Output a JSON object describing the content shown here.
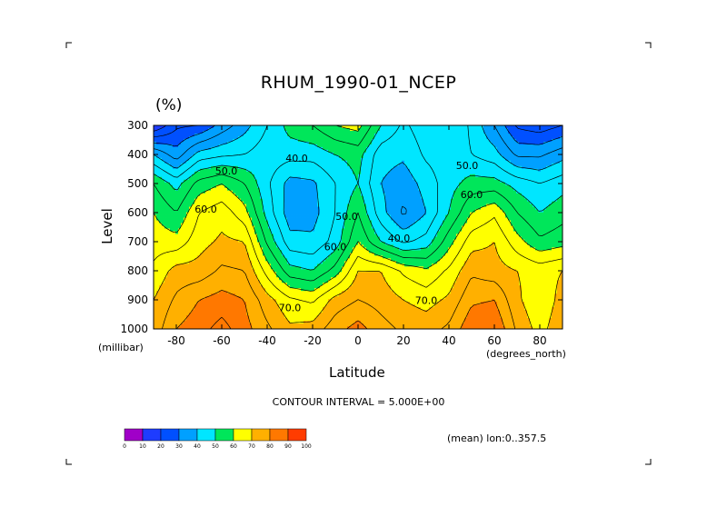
{
  "chart_data": {
    "type": "heatmap",
    "title": "RHUM_1990-01_NCEP",
    "units": "(%)",
    "ylabel": "Level",
    "ylabel_units": "(millibar)",
    "xlabel": "Latitude",
    "xlabel_units": "(degrees_north)",
    "xlim": [
      -90,
      90
    ],
    "ylim": [
      1000,
      300
    ],
    "x_ticks": [
      -80,
      -60,
      -40,
      -20,
      0,
      20,
      40,
      60,
      80
    ],
    "y_ticks": [
      300,
      400,
      500,
      600,
      700,
      800,
      900,
      1000
    ],
    "x": [
      -90,
      -80,
      -70,
      -60,
      -50,
      -40,
      -30,
      -20,
      -10,
      0,
      10,
      20,
      30,
      40,
      50,
      60,
      70,
      80,
      90
    ],
    "y": [
      1000,
      900,
      800,
      700,
      600,
      500,
      400,
      300
    ],
    "z": [
      [
        72,
        80,
        83,
        87,
        82,
        76,
        71,
        72,
        78,
        82,
        77,
        74,
        73,
        76,
        84,
        85,
        74,
        68,
        74
      ],
      [
        70,
        76,
        80,
        82,
        80,
        72,
        66,
        64,
        72,
        75,
        73,
        70,
        68,
        71,
        79,
        80,
        71,
        66,
        72
      ],
      [
        66,
        72,
        72,
        76,
        75,
        63,
        52,
        50,
        57,
        70,
        70,
        64,
        61,
        66,
        74,
        72,
        70,
        68,
        70
      ],
      [
        63,
        62,
        68,
        71,
        70,
        54,
        42,
        41,
        47,
        60,
        50,
        44,
        47,
        58,
        68,
        70,
        62,
        56,
        58
      ],
      [
        60,
        55,
        65,
        68,
        62,
        48,
        37,
        38,
        45,
        55,
        42,
        34,
        40,
        50,
        60,
        64,
        55,
        50,
        53
      ],
      [
        55,
        48,
        57,
        60,
        55,
        46,
        38,
        39,
        45,
        50,
        40,
        37,
        42,
        48,
        52,
        52,
        48,
        45,
        48
      ],
      [
        40,
        32,
        42,
        44,
        45,
        48,
        47,
        47,
        50,
        52,
        42,
        41,
        46,
        48,
        45,
        42,
        34,
        34,
        38
      ],
      [
        15,
        24,
        25,
        32,
        38,
        45,
        52,
        55,
        60,
        62,
        50,
        44,
        48,
        50,
        44,
        35,
        24,
        22,
        25
      ]
    ],
    "contour_interval": "CONTOUR INTERVAL = 5.000E+00",
    "contour_labels": [
      "50.0",
      "40.0",
      "60.0",
      "50.0",
      "40.0",
      "60.0",
      "70.0",
      "70.0",
      "50.0",
      "60.0"
    ],
    "colorbar": {
      "ticks": [
        "0",
        "10",
        "20",
        "30",
        "40",
        "50",
        "60",
        "70",
        "80",
        "90",
        "100"
      ],
      "colors": [
        "#a000c8",
        "#1e3cff",
        "#0050ff",
        "#00a0ff",
        "#00e6ff",
        "#00e65a",
        "#ffff00",
        "#ffb000",
        "#ff7800",
        "#ff3c00",
        "#ff0000"
      ]
    },
    "annotation": "(mean) lon:0..357.5",
    "grid": false,
    "legend": "colorbar bottom-left"
  }
}
